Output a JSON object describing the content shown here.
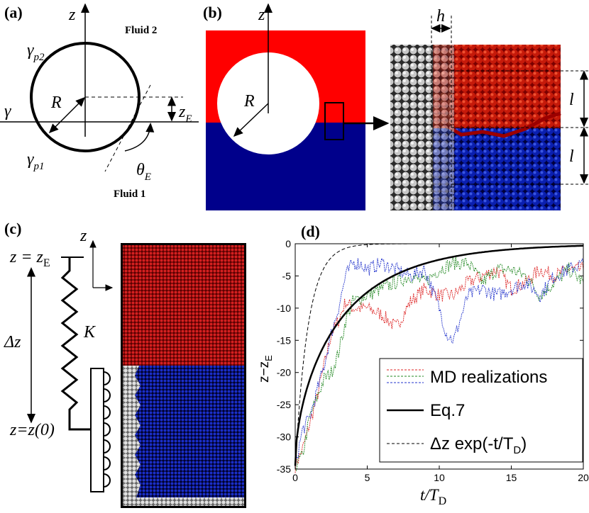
{
  "panels": {
    "a": {
      "label": "(a)",
      "axis_label": "z",
      "fluid2": "Fluid 2",
      "fluid1": "Fluid 1",
      "gamma_p2": "γ",
      "gamma_p2_sub": "p2",
      "gamma": "γ",
      "radius": "R",
      "gamma_p1": "γ",
      "gamma_p1_sub": "p1",
      "z_e": "z",
      "z_e_sub": "E",
      "theta_e": "θ",
      "theta_e_sub": "E"
    },
    "b": {
      "label": "(b)",
      "axis_label": "z",
      "radius": "R",
      "h_label": "h",
      "l_top": "l",
      "l_bottom": "l"
    },
    "c": {
      "label": "(c)",
      "axis_label": "z",
      "z_eq_left": "z = z",
      "z_eq_sub": "E",
      "delta_z": "Δz",
      "spring": "K",
      "z_zero": "z=z(0)"
    },
    "d": {
      "label": "(d)"
    }
  },
  "chart_data": {
    "type": "line",
    "xlabel": "t/T",
    "xlabel_sub": "D",
    "ylabel": "z−z",
    "ylabel_sub": "E",
    "xlim": [
      0,
      20
    ],
    "ylim": [
      -35,
      0
    ],
    "xticks": [
      "0",
      "5",
      "10",
      "15",
      "20"
    ],
    "yticks": [
      "0",
      "-5",
      "-10",
      "-15",
      "-20",
      "-25",
      "-30",
      "-35"
    ],
    "tau_eq7": 5.3,
    "tau_dashed": 0.9,
    "z0": -34.5,
    "legend": {
      "md": "MD realizations",
      "eq7": "Eq.7",
      "exp": "Δz exp(-t/T",
      "exp_sub": "D",
      "exp_close": ")"
    },
    "series": [
      {
        "name": "MD realization red",
        "color": "#dd2222",
        "x": [
          0,
          0.5,
          1,
          1.5,
          2,
          2.5,
          3,
          3.5,
          4,
          5,
          6,
          7,
          8,
          9,
          10,
          11,
          12,
          13,
          14,
          15,
          16,
          17,
          18,
          19,
          20
        ],
        "y": [
          -34.5,
          -32,
          -28,
          -24,
          -19,
          -14,
          -12,
          -9,
          -10,
          -10,
          -11,
          -13,
          -9,
          -7,
          -8,
          -8,
          -6,
          -5,
          -4,
          -7,
          -6,
          -4,
          -5,
          -4,
          -4
        ]
      },
      {
        "name": "MD realization green",
        "color": "#228822",
        "x": [
          0,
          0.5,
          1,
          1.5,
          2,
          2.5,
          3,
          3.5,
          4,
          5,
          6,
          7,
          8,
          9,
          10,
          11,
          12,
          13,
          14,
          15,
          16,
          17,
          18,
          19,
          20
        ],
        "y": [
          -34.5,
          -33,
          -27,
          -24,
          -21,
          -20,
          -17,
          -12,
          -9,
          -8,
          -7,
          -6,
          -5,
          -6,
          -4,
          -3,
          -3,
          -6,
          -4,
          -4,
          -5,
          -8,
          -6,
          -4,
          -6
        ]
      },
      {
        "name": "MD realization blue",
        "color": "#2233cc",
        "x": [
          0,
          0.5,
          1,
          1.5,
          2,
          2.5,
          3,
          3.5,
          4,
          4.5,
          5,
          6,
          7,
          8,
          9,
          10,
          10.5,
          11,
          12,
          13,
          14,
          15,
          16,
          17,
          18,
          19,
          20
        ],
        "y": [
          -34.5,
          -29,
          -27,
          -23,
          -19,
          -14,
          -10,
          -5,
          -3,
          -3,
          -4,
          -3,
          -4,
          -5,
          -4,
          -10,
          -14,
          -15,
          -8,
          -7,
          -8,
          -7,
          -6,
          -8,
          -5,
          -4,
          -3
        ]
      }
    ]
  }
}
